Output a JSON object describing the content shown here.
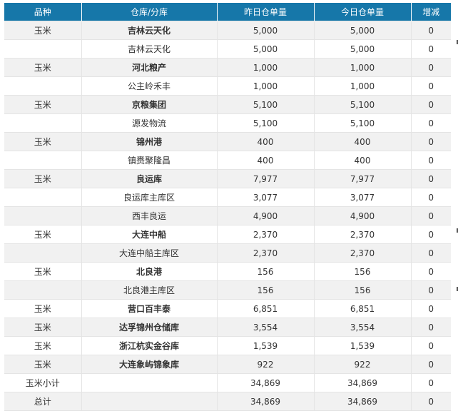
{
  "headers": [
    "品种",
    "仓库/分库",
    "昨日仓单量",
    "今日仓单量",
    "增减"
  ],
  "rows": [
    {
      "variety": "玉米",
      "warehouse": "吉林云天化",
      "yesterday": "5,000",
      "today": "5,000",
      "change": "0",
      "bold": true
    },
    {
      "variety": "",
      "warehouse": "吉林云天化",
      "yesterday": "5,000",
      "today": "5,000",
      "change": "0",
      "bold": false
    },
    {
      "variety": "玉米",
      "warehouse": "河北粮产",
      "yesterday": "1,000",
      "today": "1,000",
      "change": "0",
      "bold": true
    },
    {
      "variety": "",
      "warehouse": "公主岭禾丰",
      "yesterday": "1,000",
      "today": "1,000",
      "change": "0",
      "bold": false
    },
    {
      "variety": "玉米",
      "warehouse": "京粮集团",
      "yesterday": "5,100",
      "today": "5,100",
      "change": "0",
      "bold": true
    },
    {
      "variety": "",
      "warehouse": "源发物流",
      "yesterday": "5,100",
      "today": "5,100",
      "change": "0",
      "bold": false
    },
    {
      "variety": "玉米",
      "warehouse": "锦州港",
      "yesterday": "400",
      "today": "400",
      "change": "0",
      "bold": true
    },
    {
      "variety": "",
      "warehouse": "镇赉聚隆昌",
      "yesterday": "400",
      "today": "400",
      "change": "0",
      "bold": false
    },
    {
      "variety": "玉米",
      "warehouse": "良运库",
      "yesterday": "7,977",
      "today": "7,977",
      "change": "0",
      "bold": true
    },
    {
      "variety": "",
      "warehouse": "良运库主库区",
      "yesterday": "3,077",
      "today": "3,077",
      "change": "0",
      "bold": false
    },
    {
      "variety": "",
      "warehouse": "西丰良运",
      "yesterday": "4,900",
      "today": "4,900",
      "change": "0",
      "bold": false
    },
    {
      "variety": "玉米",
      "warehouse": "大连中船",
      "yesterday": "2,370",
      "today": "2,370",
      "change": "0",
      "bold": true
    },
    {
      "variety": "",
      "warehouse": "大连中船主库区",
      "yesterday": "2,370",
      "today": "2,370",
      "change": "0",
      "bold": false
    },
    {
      "variety": "玉米",
      "warehouse": "北良港",
      "yesterday": "156",
      "today": "156",
      "change": "0",
      "bold": true
    },
    {
      "variety": "",
      "warehouse": "北良港主库区",
      "yesterday": "156",
      "today": "156",
      "change": "0",
      "bold": false
    },
    {
      "variety": "玉米",
      "warehouse": "营口百丰泰",
      "yesterday": "6,851",
      "today": "6,851",
      "change": "0",
      "bold": true
    },
    {
      "variety": "玉米",
      "warehouse": "达孚锦州仓储库",
      "yesterday": "3,554",
      "today": "3,554",
      "change": "0",
      "bold": true
    },
    {
      "variety": "玉米",
      "warehouse": "浙江杭实金谷库",
      "yesterday": "1,539",
      "today": "1,539",
      "change": "0",
      "bold": true
    },
    {
      "variety": "玉米",
      "warehouse": "大连象屿锦象库",
      "yesterday": "922",
      "today": "922",
      "change": "0",
      "bold": true
    },
    {
      "variety": "玉米小计",
      "warehouse": "",
      "yesterday": "34,869",
      "today": "34,869",
      "change": "0",
      "bold": false
    },
    {
      "variety": "总计",
      "warehouse": "",
      "yesterday": "34,869",
      "today": "34,869",
      "change": "0",
      "bold": false
    }
  ],
  "colors": {
    "header_bg": "#1677a9",
    "header_text": "#ffffff",
    "row_odd": "#f1f1f1",
    "row_even": "#ffffff",
    "border": "#e4e4e4",
    "text": "#333333"
  }
}
